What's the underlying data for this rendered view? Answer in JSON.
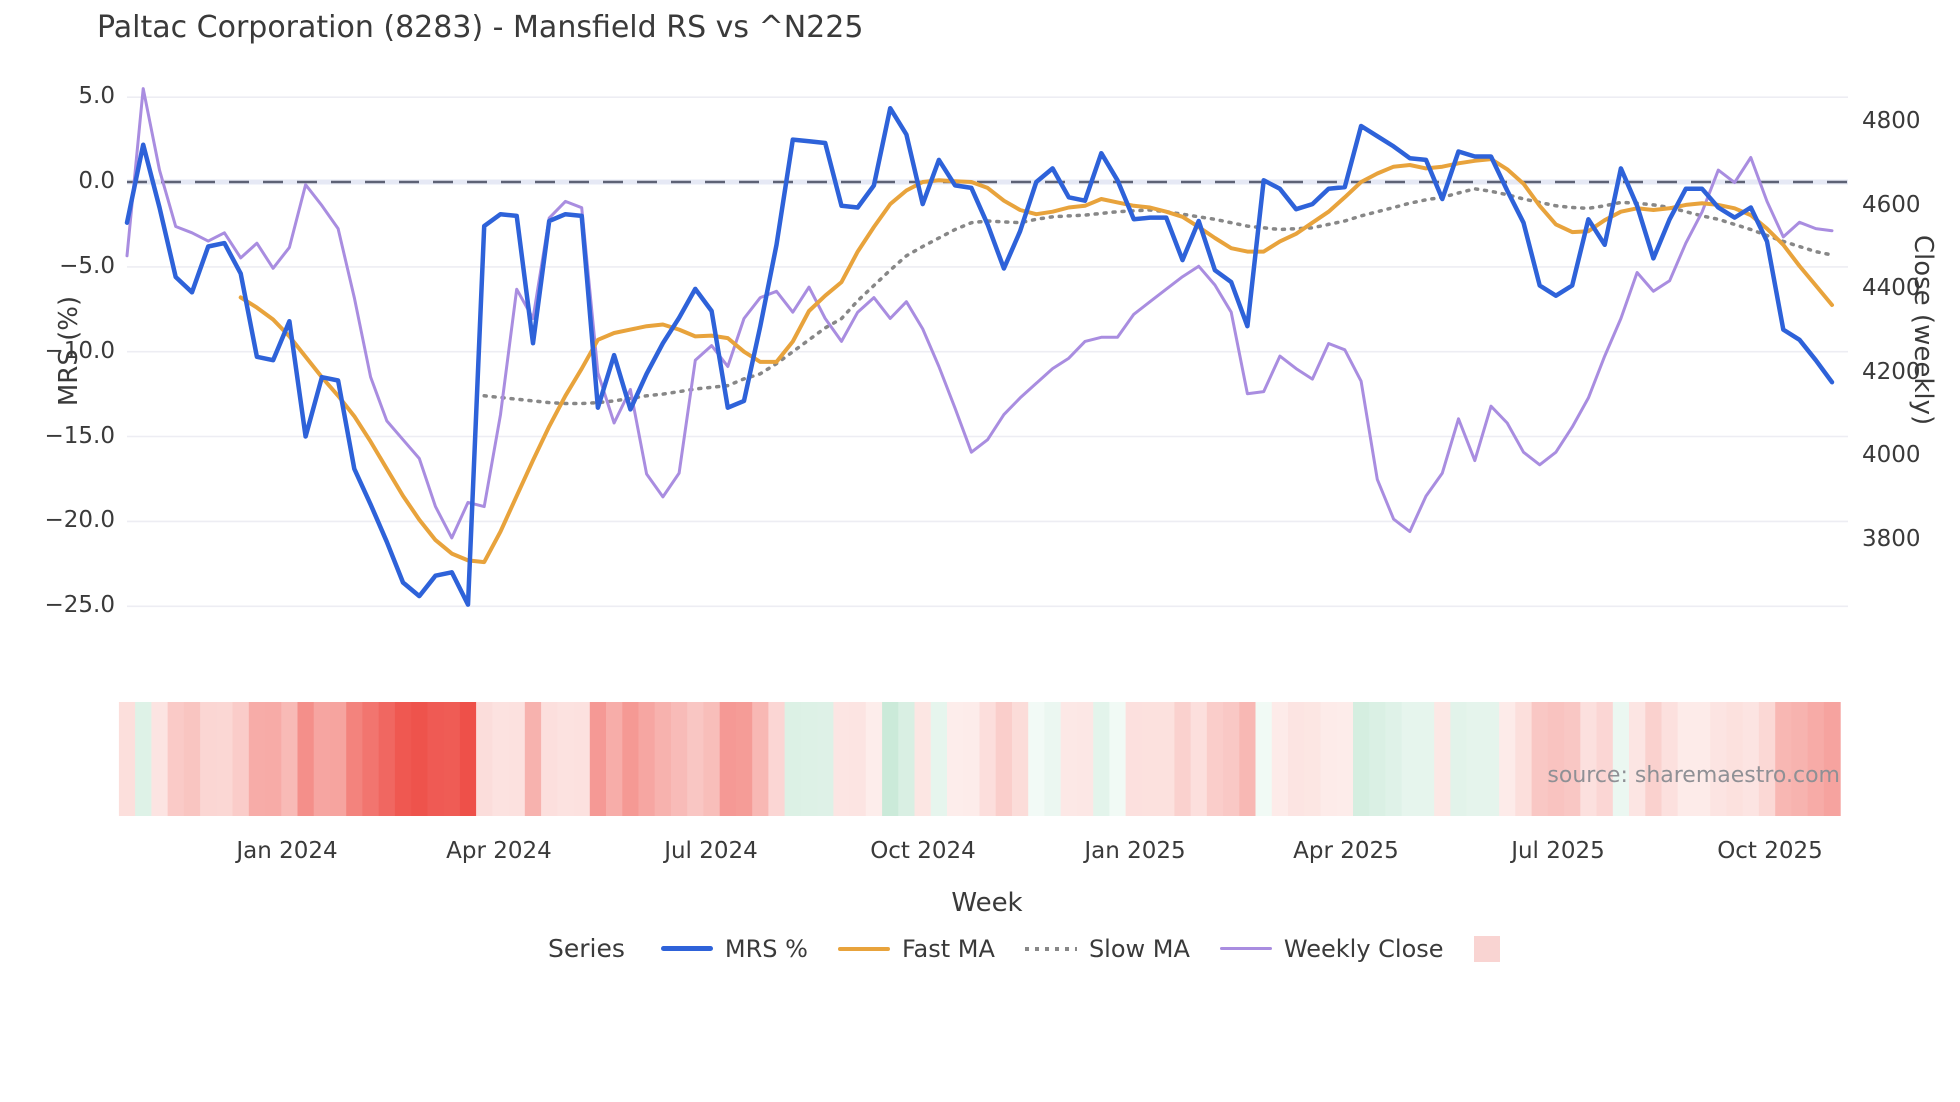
{
  "chart_data": {
    "type": "line",
    "title": "Paltac Corporation (8283) - Mansfield RS vs ^N225",
    "source_text": "source: sharemaestro.com",
    "x": {
      "label": "Week",
      "unit": "weekly",
      "n_points": 106,
      "range_start": "Nov 2023",
      "range_end": "Nov 2025",
      "tick_labels": [
        "Jan 2024",
        "Apr 2024",
        "Jul 2024",
        "Oct 2024",
        "Jan 2025",
        "Apr 2025",
        "Jul 2025",
        "Oct 2025"
      ],
      "tick_week_positions": [
        9.85,
        22.9,
        35.95,
        49.0,
        62.05,
        75.1,
        88.15,
        101.2
      ]
    },
    "left_axis": {
      "label": "MRS (%)",
      "tick_labels": [
        "5.0",
        "0.0",
        "−5.0",
        "−10.0",
        "−15.0",
        "−20.0",
        "−25.0"
      ],
      "tick_values": [
        5,
        0,
        -5,
        -10,
        -15,
        -20,
        -25
      ],
      "range": [
        -26.8,
        6.7
      ],
      "zero_reference_line": 0
    },
    "right_axis": {
      "label": "Close (weekly)",
      "tick_labels": [
        "4800",
        "4600",
        "4400",
        "4200",
        "4000",
        "3800"
      ],
      "tick_values": [
        4800,
        4600,
        4400,
        4200,
        4000,
        3800
      ],
      "range": [
        3720,
        4930
      ]
    },
    "grid": "horizontal-only",
    "series": [
      {
        "name": "MRS %",
        "axis": "left",
        "color": "#2e62d9",
        "style": "solid",
        "width": 4.5,
        "values": [
          -2.4,
          2.2,
          -1.5,
          -5.6,
          -6.5,
          -3.8,
          -3.6,
          -5.4,
          -10.3,
          -10.5,
          -8.2,
          -15.0,
          -11.5,
          -11.7,
          -16.9,
          -19.0,
          -21.2,
          -23.6,
          -24.4,
          -23.2,
          -23.0,
          -24.9,
          -2.6,
          -1.9,
          -2.0,
          -9.5,
          -2.3,
          -1.9,
          -2.0,
          -13.3,
          -10.2,
          -13.4,
          -11.3,
          -9.5,
          -8.0,
          -6.3,
          -7.6,
          -13.3,
          -12.9,
          -8.5,
          -3.7,
          2.5,
          2.4,
          2.3,
          -1.4,
          -1.5,
          -0.2,
          4.35,
          2.8,
          -1.3,
          1.3,
          -0.2,
          -0.35,
          -2.5,
          -5.1,
          -2.9,
          0.0,
          0.8,
          -0.9,
          -1.1,
          1.7,
          0.1,
          -2.2,
          -2.1,
          -2.1,
          -4.6,
          -2.3,
          -5.2,
          -5.9,
          -8.5,
          0.1,
          -0.4,
          -1.6,
          -1.3,
          -0.4,
          -0.3,
          3.3,
          2.7,
          2.1,
          1.4,
          1.3,
          -1.0,
          1.8,
          1.5,
          1.5,
          -0.5,
          -2.4,
          -6.1,
          -6.7,
          -6.1,
          -2.2,
          -3.7,
          0.8,
          -1.4,
          -4.5,
          -2.2,
          -0.4,
          -0.4,
          -1.5,
          -2.1,
          -1.5,
          -3.5,
          -8.7,
          -9.3,
          -10.5,
          -11.8
        ]
      },
      {
        "name": "Fast MA",
        "axis": "left",
        "color": "#e8a33c",
        "style": "solid",
        "width": 4,
        "values": [
          null,
          null,
          null,
          null,
          null,
          null,
          null,
          -6.8,
          -7.4,
          -8.1,
          -9.1,
          -10.3,
          -11.5,
          -12.6,
          -13.8,
          -15.3,
          -16.9,
          -18.5,
          -19.9,
          -21.1,
          -21.9,
          -22.3,
          -22.4,
          -20.6,
          -18.5,
          -16.4,
          -14.4,
          -12.6,
          -11.0,
          -9.3,
          -8.9,
          -8.7,
          -8.5,
          -8.4,
          -8.7,
          -9.1,
          -9.05,
          -9.2,
          -10.0,
          -10.6,
          -10.6,
          -9.4,
          -7.6,
          -6.7,
          -5.9,
          -4.1,
          -2.65,
          -1.3,
          -0.5,
          0.0,
          0.1,
          0.05,
          0.0,
          -0.35,
          -1.1,
          -1.65,
          -1.9,
          -1.75,
          -1.5,
          -1.4,
          -1.0,
          -1.2,
          -1.4,
          -1.5,
          -1.75,
          -2.05,
          -2.65,
          -3.3,
          -3.9,
          -4.1,
          -4.1,
          -3.5,
          -3.05,
          -2.4,
          -1.75,
          -0.9,
          0.0,
          0.5,
          0.9,
          1.0,
          0.8,
          0.9,
          1.1,
          1.25,
          1.35,
          0.75,
          -0.1,
          -1.4,
          -2.5,
          -2.95,
          -2.9,
          -2.25,
          -1.75,
          -1.55,
          -1.65,
          -1.55,
          -1.35,
          -1.25,
          -1.35,
          -1.55,
          -1.95,
          -2.75,
          -3.7,
          -4.95,
          -6.1,
          -7.25
        ]
      },
      {
        "name": "Slow MA",
        "axis": "left",
        "color": "#878787",
        "style": "dotted",
        "width": 3.5,
        "values": [
          null,
          null,
          null,
          null,
          null,
          null,
          null,
          null,
          null,
          null,
          null,
          null,
          null,
          null,
          null,
          null,
          null,
          null,
          null,
          null,
          null,
          null,
          -12.6,
          -12.7,
          -12.8,
          -12.9,
          -13.0,
          -13.05,
          -13.05,
          -13.0,
          -12.9,
          -12.75,
          -12.6,
          -12.5,
          -12.35,
          -12.2,
          -12.1,
          -12.0,
          -11.6,
          -11.3,
          -10.7,
          -10.0,
          -9.3,
          -8.6,
          -8.05,
          -7.0,
          -6.1,
          -5.2,
          -4.35,
          -3.8,
          -3.3,
          -2.8,
          -2.4,
          -2.3,
          -2.35,
          -2.4,
          -2.2,
          -2.05,
          -2.0,
          -1.95,
          -1.85,
          -1.75,
          -1.7,
          -1.65,
          -1.75,
          -1.9,
          -2.05,
          -2.2,
          -2.4,
          -2.6,
          -2.7,
          -2.8,
          -2.75,
          -2.7,
          -2.5,
          -2.3,
          -2.0,
          -1.75,
          -1.5,
          -1.25,
          -1.05,
          -0.9,
          -0.65,
          -0.4,
          -0.55,
          -0.75,
          -1.0,
          -1.2,
          -1.4,
          -1.5,
          -1.55,
          -1.4,
          -1.2,
          -1.25,
          -1.35,
          -1.5,
          -1.75,
          -2.0,
          -2.2,
          -2.5,
          -2.8,
          -3.15,
          -3.5,
          -3.8,
          -4.1,
          -4.3
        ]
      },
      {
        "name": "Weekly Close",
        "axis": "right",
        "color": "#a98de0",
        "style": "solid",
        "width": 3,
        "values": [
          4480,
          4880,
          4685,
          4550,
          4535,
          4515,
          4535,
          4475,
          4510,
          4450,
          4500,
          4650,
          4600,
          4545,
          4380,
          4190,
          4085,
          4040,
          3995,
          3880,
          3805,
          3890,
          3880,
          4100,
          4400,
          4330,
          4570,
          4610,
          4595,
          4200,
          4080,
          4160,
          3958,
          3903,
          3960,
          4230,
          4265,
          4215,
          4330,
          4380,
          4395,
          4345,
          4405,
          4330,
          4275,
          4345,
          4380,
          4330,
          4370,
          4305,
          4215,
          4115,
          4010,
          4040,
          4100,
          4140,
          4175,
          4210,
          4235,
          4275,
          4285,
          4285,
          4340,
          4370,
          4400,
          4430,
          4455,
          4410,
          4345,
          4150,
          4155,
          4240,
          4210,
          4185,
          4270,
          4255,
          4180,
          3945,
          3850,
          3820,
          3905,
          3960,
          4090,
          3990,
          4120,
          4080,
          4010,
          3980,
          4010,
          4070,
          4140,
          4240,
          4330,
          4440,
          4395,
          4420,
          4510,
          4585,
          4685,
          4655,
          4715,
          4610,
          4525,
          4560,
          4545,
          4540
        ]
      }
    ],
    "zero_line": {
      "value": 0,
      "color": "#5d6275",
      "style": "dashed",
      "band_color": "#e6e9f5"
    },
    "heatmap_strip": {
      "derived_from": "MRS %",
      "position": "below-plot",
      "negative_color_max": "#ee4f48",
      "negative_color_min": "#fdeeec",
      "positive_color_min": "#f2faf6",
      "positive_color_max": "#cae9d8"
    },
    "legend": {
      "title": "Series",
      "items": [
        {
          "label": "MRS %",
          "swatch": "line",
          "color": "#2e62d9",
          "height": 4.5
        },
        {
          "label": "Fast MA",
          "swatch": "line",
          "color": "#e8a33c",
          "height": 4
        },
        {
          "label": "Slow MA",
          "swatch": "dotted",
          "color": "#878787",
          "height": 4
        },
        {
          "label": "Weekly Close",
          "swatch": "line",
          "color": "#a98de0",
          "height": 3
        },
        {
          "label": "",
          "swatch": "square",
          "color": "#f9d4d2",
          "height": 26
        }
      ]
    }
  }
}
